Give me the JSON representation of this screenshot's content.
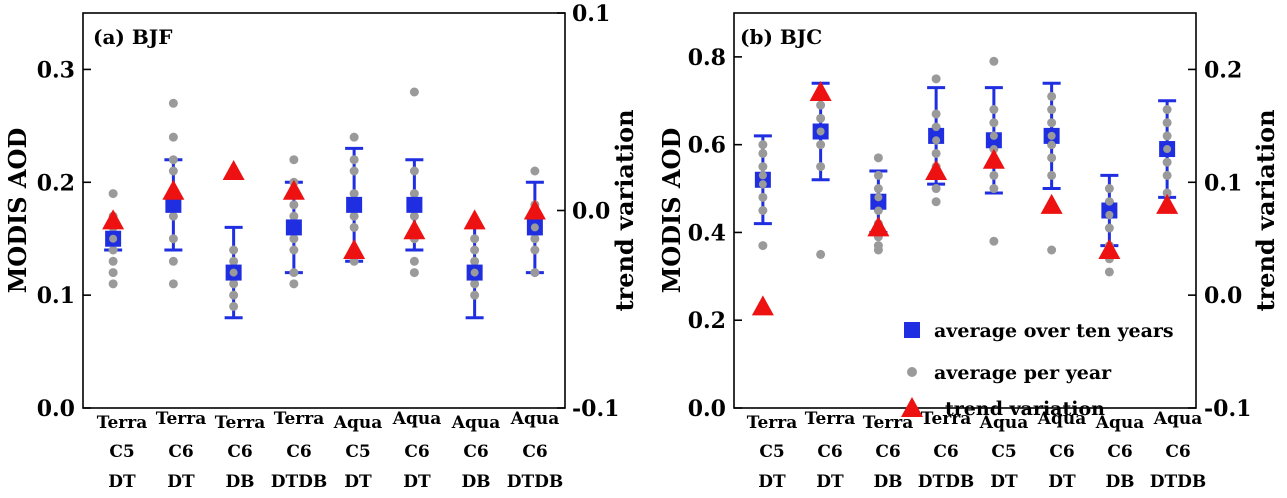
{
  "colors": {
    "average": "#1f2ee0",
    "year": "#9a9a9a",
    "trend": "#ee1111",
    "axis": "#000000"
  },
  "legend": {
    "items": [
      {
        "marker": "square",
        "label": "average over ten years"
      },
      {
        "marker": "circle",
        "label": "average per year"
      },
      {
        "marker": "triangle",
        "label": "trend variation"
      }
    ]
  },
  "chart_data": [
    {
      "type": "scatter",
      "panel_label": "(a)  BJF",
      "ylabel": "MODIS  AOD",
      "y2label": "trend  variation",
      "ylim": [
        0,
        0.35
      ],
      "y2lim": [
        -0.1,
        0.1
      ],
      "yticks": [
        "0.0",
        "0.1",
        "0.2",
        "0.3"
      ],
      "y2ticks": [
        "-0.1",
        "0.0",
        "0.1"
      ],
      "categories": [
        [
          "Terra",
          "C5",
          "DT"
        ],
        [
          "Terra",
          "C6",
          "DT"
        ],
        [
          "Terra",
          "C6",
          "DB"
        ],
        [
          "Terra",
          "C6",
          "DTDB"
        ],
        [
          "Aqua",
          "C5",
          "DT"
        ],
        [
          "Aqua",
          "C6",
          "DT"
        ],
        [
          "Aqua",
          "C6",
          "DB"
        ],
        [
          "Aqua",
          "C6",
          "DTDB"
        ]
      ],
      "series": [
        {
          "name": "average over ten years",
          "marker": "square",
          "axis": "left",
          "values": [
            0.15,
            0.18,
            0.12,
            0.16,
            0.18,
            0.18,
            0.12,
            0.16
          ],
          "err_low": [
            0.14,
            0.14,
            0.08,
            0.12,
            0.13,
            0.14,
            0.08,
            0.12
          ],
          "err_high": [
            0.16,
            0.22,
            0.16,
            0.2,
            0.23,
            0.22,
            0.16,
            0.2
          ]
        },
        {
          "name": "average per year",
          "marker": "circle",
          "axis": "left",
          "values": [
            [
              0.11,
              0.12,
              0.13,
              0.14,
              0.15,
              0.16,
              0.17,
              0.19
            ],
            [
              0.11,
              0.13,
              0.15,
              0.17,
              0.19,
              0.21,
              0.22,
              0.24,
              0.27
            ],
            [
              0.09,
              0.1,
              0.11,
              0.12,
              0.13,
              0.14
            ],
            [
              0.11,
              0.12,
              0.14,
              0.15,
              0.17,
              0.18,
              0.2,
              0.22
            ],
            [
              0.13,
              0.14,
              0.16,
              0.17,
              0.19,
              0.21,
              0.22,
              0.24
            ],
            [
              0.12,
              0.13,
              0.15,
              0.17,
              0.19,
              0.21,
              0.28
            ],
            [
              0.1,
              0.11,
              0.12,
              0.13,
              0.14,
              0.15
            ],
            [
              0.12,
              0.14,
              0.15,
              0.16,
              0.17,
              0.18,
              0.21
            ]
          ]
        },
        {
          "name": "trend variation",
          "marker": "triangle",
          "axis": "right",
          "values": [
            -0.005,
            0.01,
            0.02,
            0.01,
            -0.02,
            -0.01,
            -0.005,
            0.0
          ]
        }
      ]
    },
    {
      "type": "scatter",
      "panel_label": "(b)  BJC",
      "ylabel": "MODIS  AOD",
      "y2label": "trend  variation",
      "ylim": [
        0,
        0.9
      ],
      "y2lim": [
        -0.1,
        0.25
      ],
      "yticks": [
        "0.0",
        "0.2",
        "0.4",
        "0.6",
        "0.8"
      ],
      "y2ticks": [
        "-0.1",
        "0.0",
        "0.1",
        "0.2"
      ],
      "categories": [
        [
          "Terra",
          "C5",
          "DT"
        ],
        [
          "Terra",
          "C6",
          "DT"
        ],
        [
          "Terra",
          "C6",
          "DB"
        ],
        [
          "Terra",
          "C6",
          "DTDB"
        ],
        [
          "Aqua",
          "C5",
          "DT"
        ],
        [
          "Aqua",
          "C6",
          "DT"
        ],
        [
          "Aqua",
          "C6",
          "DB"
        ],
        [
          "Aqua",
          "C6",
          "DTDB"
        ]
      ],
      "series": [
        {
          "name": "average over ten years",
          "marker": "square",
          "axis": "left",
          "values": [
            0.52,
            0.63,
            0.47,
            0.62,
            0.61,
            0.62,
            0.45,
            0.59
          ],
          "err_low": [
            0.42,
            0.52,
            0.4,
            0.51,
            0.49,
            0.5,
            0.37,
            0.48
          ],
          "err_high": [
            0.62,
            0.74,
            0.54,
            0.73,
            0.73,
            0.74,
            0.53,
            0.7
          ]
        },
        {
          "name": "average per year",
          "marker": "circle",
          "axis": "left",
          "values": [
            [
              0.37,
              0.45,
              0.48,
              0.51,
              0.53,
              0.55,
              0.58,
              0.6
            ],
            [
              0.35,
              0.55,
              0.6,
              0.63,
              0.66,
              0.69,
              0.72
            ],
            [
              0.36,
              0.37,
              0.39,
              0.42,
              0.45,
              0.48,
              0.5,
              0.53,
              0.57
            ],
            [
              0.47,
              0.5,
              0.55,
              0.58,
              0.61,
              0.64,
              0.67,
              0.75
            ],
            [
              0.38,
              0.5,
              0.53,
              0.56,
              0.59,
              0.62,
              0.65,
              0.68,
              0.79
            ],
            [
              0.36,
              0.53,
              0.57,
              0.6,
              0.62,
              0.65,
              0.68,
              0.71
            ],
            [
              0.31,
              0.34,
              0.37,
              0.41,
              0.44,
              0.47,
              0.5
            ],
            [
              0.46,
              0.49,
              0.53,
              0.56,
              0.59,
              0.62,
              0.65,
              0.68
            ]
          ]
        },
        {
          "name": "trend variation",
          "marker": "triangle",
          "axis": "right",
          "values": [
            -0.01,
            0.18,
            0.06,
            0.11,
            0.12,
            0.08,
            0.04,
            0.08
          ]
        }
      ]
    }
  ]
}
